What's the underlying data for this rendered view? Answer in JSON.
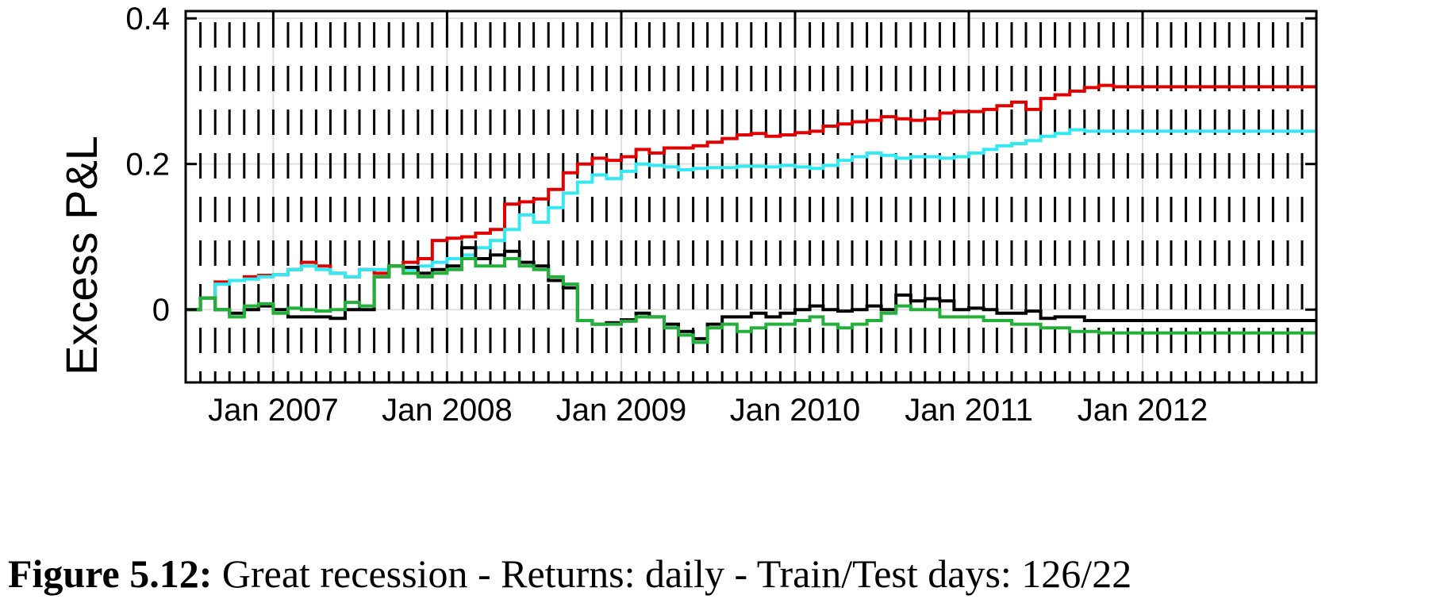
{
  "chart_data": {
    "type": "line",
    "title": "",
    "xlabel": "",
    "ylabel": "Excess P&L",
    "x_ticks": [
      "Jan 2007",
      "Jan 2008",
      "Jan 2009",
      "Jan 2010",
      "Jan 2011",
      "Jan 2012"
    ],
    "y_ticks": [
      "0",
      "0.2",
      "0.4"
    ],
    "xlim": [
      "2006-07-01",
      "2012-12-31"
    ],
    "ylim": [
      -0.1,
      0.41
    ],
    "grid": true,
    "step": true,
    "colors": {
      "red": "#e00000",
      "cyan": "#33e8f0",
      "black": "#000000",
      "green": "#22b03a"
    },
    "x": [
      "2006-07",
      "2006-08",
      "2006-09",
      "2006-10",
      "2006-11",
      "2006-12",
      "2007-01",
      "2007-02",
      "2007-03",
      "2007-04",
      "2007-05",
      "2007-06",
      "2007-07",
      "2007-08",
      "2007-09",
      "2007-10",
      "2007-11",
      "2007-12",
      "2008-01",
      "2008-02",
      "2008-03",
      "2008-04",
      "2008-05",
      "2008-06",
      "2008-07",
      "2008-08",
      "2008-09",
      "2008-10",
      "2008-11",
      "2008-12",
      "2009-01",
      "2009-02",
      "2009-03",
      "2009-04",
      "2009-05",
      "2009-06",
      "2009-07",
      "2009-08",
      "2009-09",
      "2009-10",
      "2009-11",
      "2009-12",
      "2010-01",
      "2010-02",
      "2010-03",
      "2010-04",
      "2010-05",
      "2010-06",
      "2010-07",
      "2010-08",
      "2010-09",
      "2010-10",
      "2010-11",
      "2010-12",
      "2011-01",
      "2011-02",
      "2011-03",
      "2011-04",
      "2011-05",
      "2011-06",
      "2011-07",
      "2011-08",
      "2011-09",
      "2011-10",
      "2011-11",
      "2011-12",
      "2012-01",
      "2012-02",
      "2012-03",
      "2012-04",
      "2012-05",
      "2012-06",
      "2012-07",
      "2012-08",
      "2012-09",
      "2012-10",
      "2012-11",
      "2012-12"
    ],
    "series": [
      {
        "color": "red",
        "values": [
          0.0,
          0.016,
          0.038,
          0.04,
          0.045,
          0.047,
          0.048,
          0.055,
          0.065,
          0.06,
          0.05,
          0.045,
          0.055,
          0.05,
          0.06,
          0.065,
          0.07,
          0.095,
          0.098,
          0.1,
          0.105,
          0.11,
          0.145,
          0.148,
          0.152,
          0.165,
          0.188,
          0.2,
          0.208,
          0.205,
          0.21,
          0.22,
          0.215,
          0.222,
          0.222,
          0.225,
          0.23,
          0.235,
          0.24,
          0.242,
          0.238,
          0.24,
          0.243,
          0.245,
          0.252,
          0.255,
          0.258,
          0.26,
          0.265,
          0.262,
          0.26,
          0.262,
          0.27,
          0.272,
          0.272,
          0.275,
          0.28,
          0.285,
          0.275,
          0.29,
          0.295,
          0.3,
          0.305,
          0.308,
          0.306,
          0.306,
          0.306,
          0.306,
          0.306,
          0.306,
          0.306,
          0.306,
          0.306,
          0.306,
          0.306,
          0.306,
          0.306,
          0.306
        ]
      },
      {
        "color": "cyan",
        "values": [
          0.0,
          0.016,
          0.035,
          0.04,
          0.042,
          0.045,
          0.048,
          0.055,
          0.06,
          0.055,
          0.05,
          0.045,
          0.055,
          0.055,
          0.06,
          0.055,
          0.06,
          0.065,
          0.07,
          0.075,
          0.085,
          0.095,
          0.11,
          0.13,
          0.12,
          0.14,
          0.16,
          0.175,
          0.185,
          0.18,
          0.19,
          0.2,
          0.198,
          0.196,
          0.192,
          0.194,
          0.195,
          0.195,
          0.197,
          0.197,
          0.196,
          0.198,
          0.196,
          0.194,
          0.198,
          0.205,
          0.21,
          0.215,
          0.212,
          0.208,
          0.21,
          0.21,
          0.208,
          0.21,
          0.215,
          0.22,
          0.225,
          0.228,
          0.232,
          0.238,
          0.242,
          0.247,
          0.245,
          0.245,
          0.245,
          0.245,
          0.245,
          0.245,
          0.245,
          0.245,
          0.245,
          0.245,
          0.245,
          0.245,
          0.245,
          0.245,
          0.245,
          0.245
        ]
      },
      {
        "color": "black",
        "values": [
          0.0,
          0.016,
          0.0,
          -0.005,
          0.0,
          0.005,
          0.0,
          -0.01,
          -0.01,
          -0.01,
          -0.012,
          0.0,
          0.0,
          0.045,
          0.06,
          0.058,
          0.05,
          0.055,
          0.06,
          0.085,
          0.07,
          0.075,
          0.08,
          0.065,
          0.06,
          0.04,
          0.03,
          -0.015,
          -0.02,
          -0.018,
          -0.014,
          -0.005,
          -0.01,
          -0.02,
          -0.03,
          -0.04,
          -0.02,
          -0.01,
          -0.01,
          -0.005,
          -0.01,
          -0.005,
          0.0,
          0.005,
          0.0,
          -0.002,
          0.0,
          0.005,
          0.0,
          0.02,
          0.012,
          0.015,
          0.012,
          0.0,
          0.002,
          0.0,
          -0.005,
          -0.005,
          -0.002,
          -0.012,
          -0.01,
          -0.01,
          -0.015,
          -0.015,
          -0.015,
          -0.015,
          -0.015,
          -0.015,
          -0.015,
          -0.015,
          -0.015,
          -0.015,
          -0.015,
          -0.015,
          -0.015,
          -0.015,
          -0.015,
          -0.015
        ]
      },
      {
        "color": "green",
        "values": [
          0.0,
          0.016,
          0.0,
          -0.01,
          0.005,
          0.008,
          -0.005,
          0.002,
          0.0,
          -0.002,
          0.0,
          0.01,
          0.005,
          0.045,
          0.06,
          0.05,
          0.045,
          0.05,
          0.055,
          0.07,
          0.06,
          0.06,
          0.07,
          0.06,
          0.055,
          0.045,
          0.035,
          -0.015,
          -0.02,
          -0.02,
          -0.016,
          -0.01,
          -0.01,
          -0.025,
          -0.035,
          -0.045,
          -0.025,
          -0.02,
          -0.03,
          -0.025,
          -0.02,
          -0.02,
          -0.015,
          -0.01,
          -0.02,
          -0.025,
          -0.02,
          -0.015,
          -0.005,
          0.005,
          0.0,
          0.0,
          -0.01,
          -0.01,
          -0.01,
          -0.015,
          -0.015,
          -0.02,
          -0.02,
          -0.025,
          -0.025,
          -0.03,
          -0.03,
          -0.032,
          -0.032,
          -0.032,
          -0.032,
          -0.032,
          -0.032,
          -0.032,
          -0.032,
          -0.032,
          -0.032,
          -0.032,
          -0.032,
          -0.032,
          -0.032,
          -0.032
        ]
      }
    ]
  },
  "caption": {
    "label": "Figure 5.12:",
    "text": " Great recession - Returns: daily - Train/Test days: 126/22"
  }
}
